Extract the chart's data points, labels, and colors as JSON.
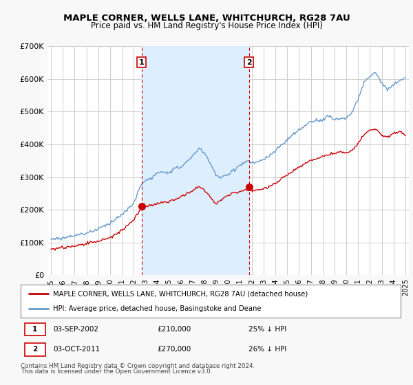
{
  "title": "MAPLE CORNER, WELLS LANE, WHITCHURCH, RG28 7AU",
  "subtitle": "Price paid vs. HM Land Registry's House Price Index (HPI)",
  "ylim": [
    0,
    700000
  ],
  "yticks": [
    0,
    100000,
    200000,
    300000,
    400000,
    500000,
    600000,
    700000
  ],
  "ytick_labels": [
    "£0",
    "£100K",
    "£200K",
    "£300K",
    "£400K",
    "£500K",
    "£600K",
    "£700K"
  ],
  "xlim_start": 1994.7,
  "xlim_end": 2025.3,
  "bg_color": "#f8f8f8",
  "plot_bg_color": "#ffffff",
  "grid_color": "#cccccc",
  "shade_color": "#ddeeff",
  "red_color": "#cc0000",
  "blue_color": "#6699cc",
  "marker1_x": 2002.67,
  "marker1_y": 210000,
  "marker2_x": 2011.75,
  "marker2_y": 270000,
  "legend_line1": "MAPLE CORNER, WELLS LANE, WHITCHURCH, RG28 7AU (detached house)",
  "legend_line2": "HPI: Average price, detached house, Basingstoke and Deane",
  "footnote1": "Contains HM Land Registry data © Crown copyright and database right 2024.",
  "footnote2": "This data is licensed under the Open Government Licence v3.0."
}
